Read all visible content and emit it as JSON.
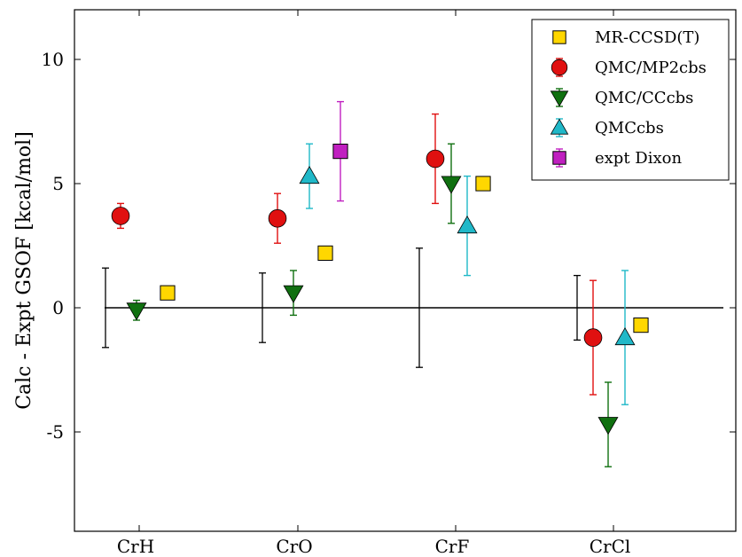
{
  "chart_data": {
    "type": "scatter",
    "ylabel": "Calc - Expt GSOF [kcal/mol]",
    "xlabel": "",
    "categories": [
      "CrH",
      "CrO",
      "CrF",
      "CrCl"
    ],
    "ylim": [
      -9,
      12
    ],
    "yticks": [
      {
        "value": 10,
        "label": "10"
      },
      {
        "value": 5,
        "label": "5"
      },
      {
        "value": 0,
        "label": "0"
      },
      {
        "value": -5,
        "label": "-5"
      }
    ],
    "reference_line": 0,
    "experimental_uncertainty": {
      "color": "#000000",
      "errors": [
        1.6,
        1.4,
        2.4,
        1.3
      ]
    },
    "legend_position": "top-right",
    "grid": false,
    "series": [
      {
        "name": "MR-CCSD(T)",
        "marker": "square",
        "color": "#FFD700",
        "errorbars": false,
        "values": [
          0.6,
          2.2,
          5.0,
          -0.7
        ],
        "errors": [
          0,
          0,
          0,
          0
        ]
      },
      {
        "name": "QMC/MP2cbs",
        "marker": "circle",
        "color": "#E01010",
        "errorbars": true,
        "values": [
          3.7,
          3.6,
          6.0,
          -1.2
        ],
        "errors": [
          0.5,
          1.0,
          1.8,
          2.3
        ]
      },
      {
        "name": "QMC/CCcbs",
        "marker": "triangle-down",
        "color": "#107010",
        "errorbars": true,
        "values": [
          -0.1,
          0.6,
          5.0,
          -4.7
        ],
        "errors": [
          0.4,
          0.9,
          1.6,
          1.7
        ]
      },
      {
        "name": "QMCcbs",
        "marker": "triangle-up",
        "color": "#20B8C8",
        "errorbars": true,
        "values": [
          null,
          5.3,
          3.3,
          -1.2
        ],
        "errors": [
          0,
          1.3,
          2.0,
          2.7
        ]
      },
      {
        "name": "expt Dixon",
        "marker": "square",
        "color": "#C020C0",
        "errorbars": true,
        "values": [
          null,
          6.3,
          null,
          null
        ],
        "errors": [
          0,
          2.0,
          0,
          0
        ]
      }
    ]
  }
}
